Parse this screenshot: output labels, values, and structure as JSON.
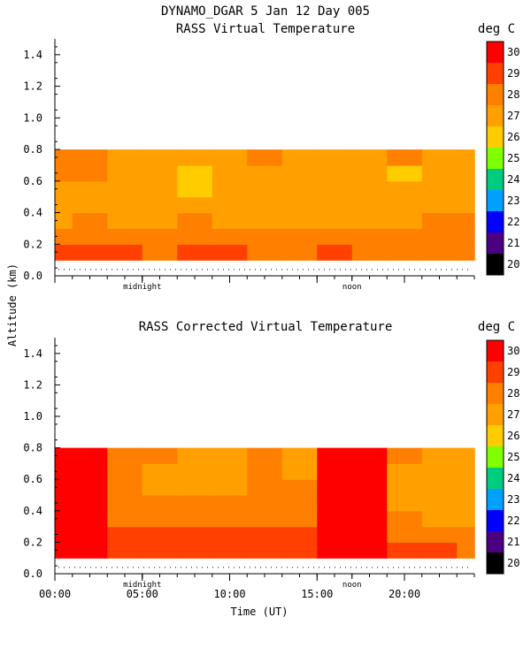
{
  "figure": {
    "title": "DYNAMO_DGAR   5 Jan 12 Day 005",
    "shared_ylabel": "Altitude (km)",
    "xlabel": "Time (UT)"
  },
  "chart_data": [
    {
      "type": "heatmap",
      "title": "RASS Virtual Temperature",
      "colorbar_label": "deg C",
      "xlabel": "",
      "ylabel": "Altitude (km)",
      "xlim": [
        0,
        24
      ],
      "ylim": [
        0.0,
        1.5
      ],
      "x_ticks": [
        "00:00",
        "05:00",
        "10:00",
        "15:00",
        "20:00"
      ],
      "x_tick_values": [
        0,
        5,
        10,
        15,
        20
      ],
      "y_ticks": [
        "0.0",
        "0.2",
        "0.4",
        "0.6",
        "0.8",
        "1.0",
        "1.2",
        "1.4"
      ],
      "y_tick_values": [
        0.0,
        0.2,
        0.4,
        0.6,
        0.8,
        1.0,
        1.2,
        1.4
      ],
      "annotations": [
        {
          "text": "midnight",
          "x": 5.0
        },
        {
          "text": "noon",
          "x": 17.0
        }
      ],
      "colorbar_ticks": [
        30,
        29,
        28,
        27,
        26,
        25,
        24,
        23,
        22,
        21,
        20
      ],
      "colorbar_colors": [
        "#ff0000",
        "#ff4000",
        "#ff7f00",
        "#ffa000",
        "#ffcc00",
        "#7fff00",
        "#00cc7f",
        "#00a0ff",
        "#0000ff",
        "#4b0082",
        "#000000"
      ],
      "altitudes_km": [
        0.15,
        0.25,
        0.35,
        0.45,
        0.55,
        0.65,
        0.75
      ],
      "times_ut_hours": [
        0,
        2,
        4,
        6,
        8,
        10,
        12,
        14,
        16,
        18,
        20,
        22,
        24
      ],
      "values_deg_c": [
        [
          29,
          29,
          29,
          28,
          29,
          29,
          28,
          28,
          29,
          28,
          28,
          28,
          28
        ],
        [
          28,
          28,
          28,
          28,
          28,
          28,
          28,
          28,
          28,
          28,
          28,
          28,
          28
        ],
        [
          27,
          28,
          27,
          27,
          28,
          27,
          27,
          27,
          27,
          27,
          27,
          28,
          28
        ],
        [
          27,
          27,
          27,
          27,
          27,
          27,
          27,
          27,
          27,
          27,
          27,
          27,
          27
        ],
        [
          27,
          27,
          27,
          27,
          26,
          27,
          27,
          27,
          27,
          27,
          27,
          27,
          27
        ],
        [
          28,
          28,
          27,
          27,
          26,
          27,
          27,
          27,
          27,
          27,
          26,
          27,
          27
        ],
        [
          28,
          28,
          27,
          27,
          27,
          27,
          28,
          27,
          27,
          27,
          28,
          27,
          27
        ]
      ]
    },
    {
      "type": "heatmap",
      "title": "RASS Corrected Virtual Temperature",
      "colorbar_label": "deg C",
      "xlabel": "Time (UT)",
      "ylabel": "Altitude (km)",
      "xlim": [
        0,
        24
      ],
      "ylim": [
        0.0,
        1.5
      ],
      "x_ticks": [
        "00:00",
        "05:00",
        "10:00",
        "15:00",
        "20:00"
      ],
      "x_tick_values": [
        0,
        5,
        10,
        15,
        20
      ],
      "y_ticks": [
        "0.0",
        "0.2",
        "0.4",
        "0.6",
        "0.8",
        "1.0",
        "1.2",
        "1.4"
      ],
      "y_tick_values": [
        0.0,
        0.2,
        0.4,
        0.6,
        0.8,
        1.0,
        1.2,
        1.4
      ],
      "annotations": [
        {
          "text": "midnight",
          "x": 5.0
        },
        {
          "text": "noon",
          "x": 17.0
        }
      ],
      "colorbar_ticks": [
        30,
        29,
        28,
        27,
        26,
        25,
        24,
        23,
        22,
        21,
        20
      ],
      "colorbar_colors": [
        "#ff0000",
        "#ff4000",
        "#ff7f00",
        "#ffa000",
        "#ffcc00",
        "#7fff00",
        "#00cc7f",
        "#00a0ff",
        "#0000ff",
        "#4b0082",
        "#000000"
      ],
      "altitudes_km": [
        0.15,
        0.25,
        0.35,
        0.45,
        0.55,
        0.65,
        0.75
      ],
      "times_ut_hours": [
        0,
        2,
        4,
        6,
        8,
        10,
        12,
        14,
        16,
        18,
        20,
        22,
        24
      ],
      "values_deg_c": [
        [
          30,
          30,
          29,
          29,
          29,
          29,
          29,
          29,
          30,
          30,
          29,
          29,
          28
        ],
        [
          30,
          30,
          29,
          29,
          29,
          29,
          29,
          29,
          30,
          30,
          28,
          28,
          28
        ],
        [
          30,
          30,
          28,
          28,
          28,
          28,
          28,
          28,
          30,
          30,
          28,
          27,
          27
        ],
        [
          30,
          30,
          28,
          28,
          28,
          28,
          28,
          28,
          30,
          30,
          27,
          27,
          27
        ],
        [
          30,
          30,
          28,
          27,
          27,
          27,
          28,
          28,
          30,
          30,
          27,
          27,
          27
        ],
        [
          30,
          30,
          28,
          27,
          27,
          27,
          28,
          27,
          30,
          30,
          27,
          27,
          27
        ],
        [
          30,
          30,
          28,
          28,
          27,
          27,
          28,
          27,
          30,
          30,
          28,
          27,
          27
        ]
      ]
    }
  ]
}
